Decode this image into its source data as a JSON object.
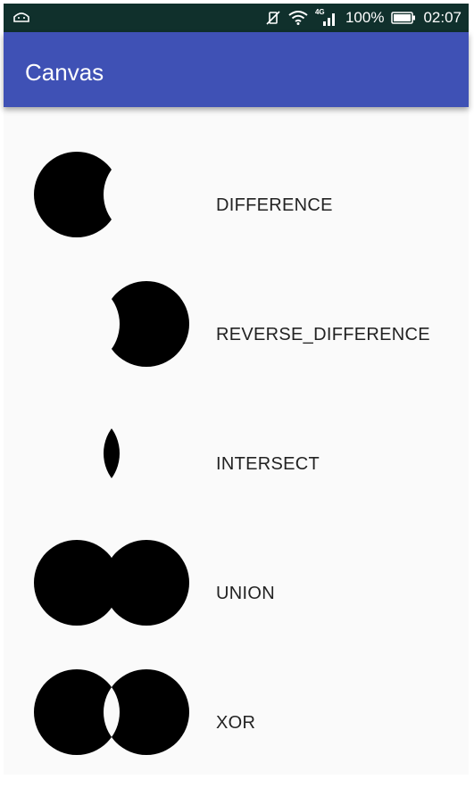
{
  "status_bar": {
    "network_label": "4G",
    "battery": "100%",
    "time": "02:07"
  },
  "app_bar": {
    "title": "Canvas"
  },
  "ops": [
    {
      "label": "DIFFERENCE"
    },
    {
      "label": "REVERSE_DIFFERENCE"
    },
    {
      "label": "INTERSECT"
    },
    {
      "label": "UNION"
    },
    {
      "label": "XOR"
    }
  ],
  "colors": {
    "status_bar": "#10302c",
    "app_bar": "#3f51b5",
    "shape_fill": "#000000",
    "background": "#fafafa"
  }
}
